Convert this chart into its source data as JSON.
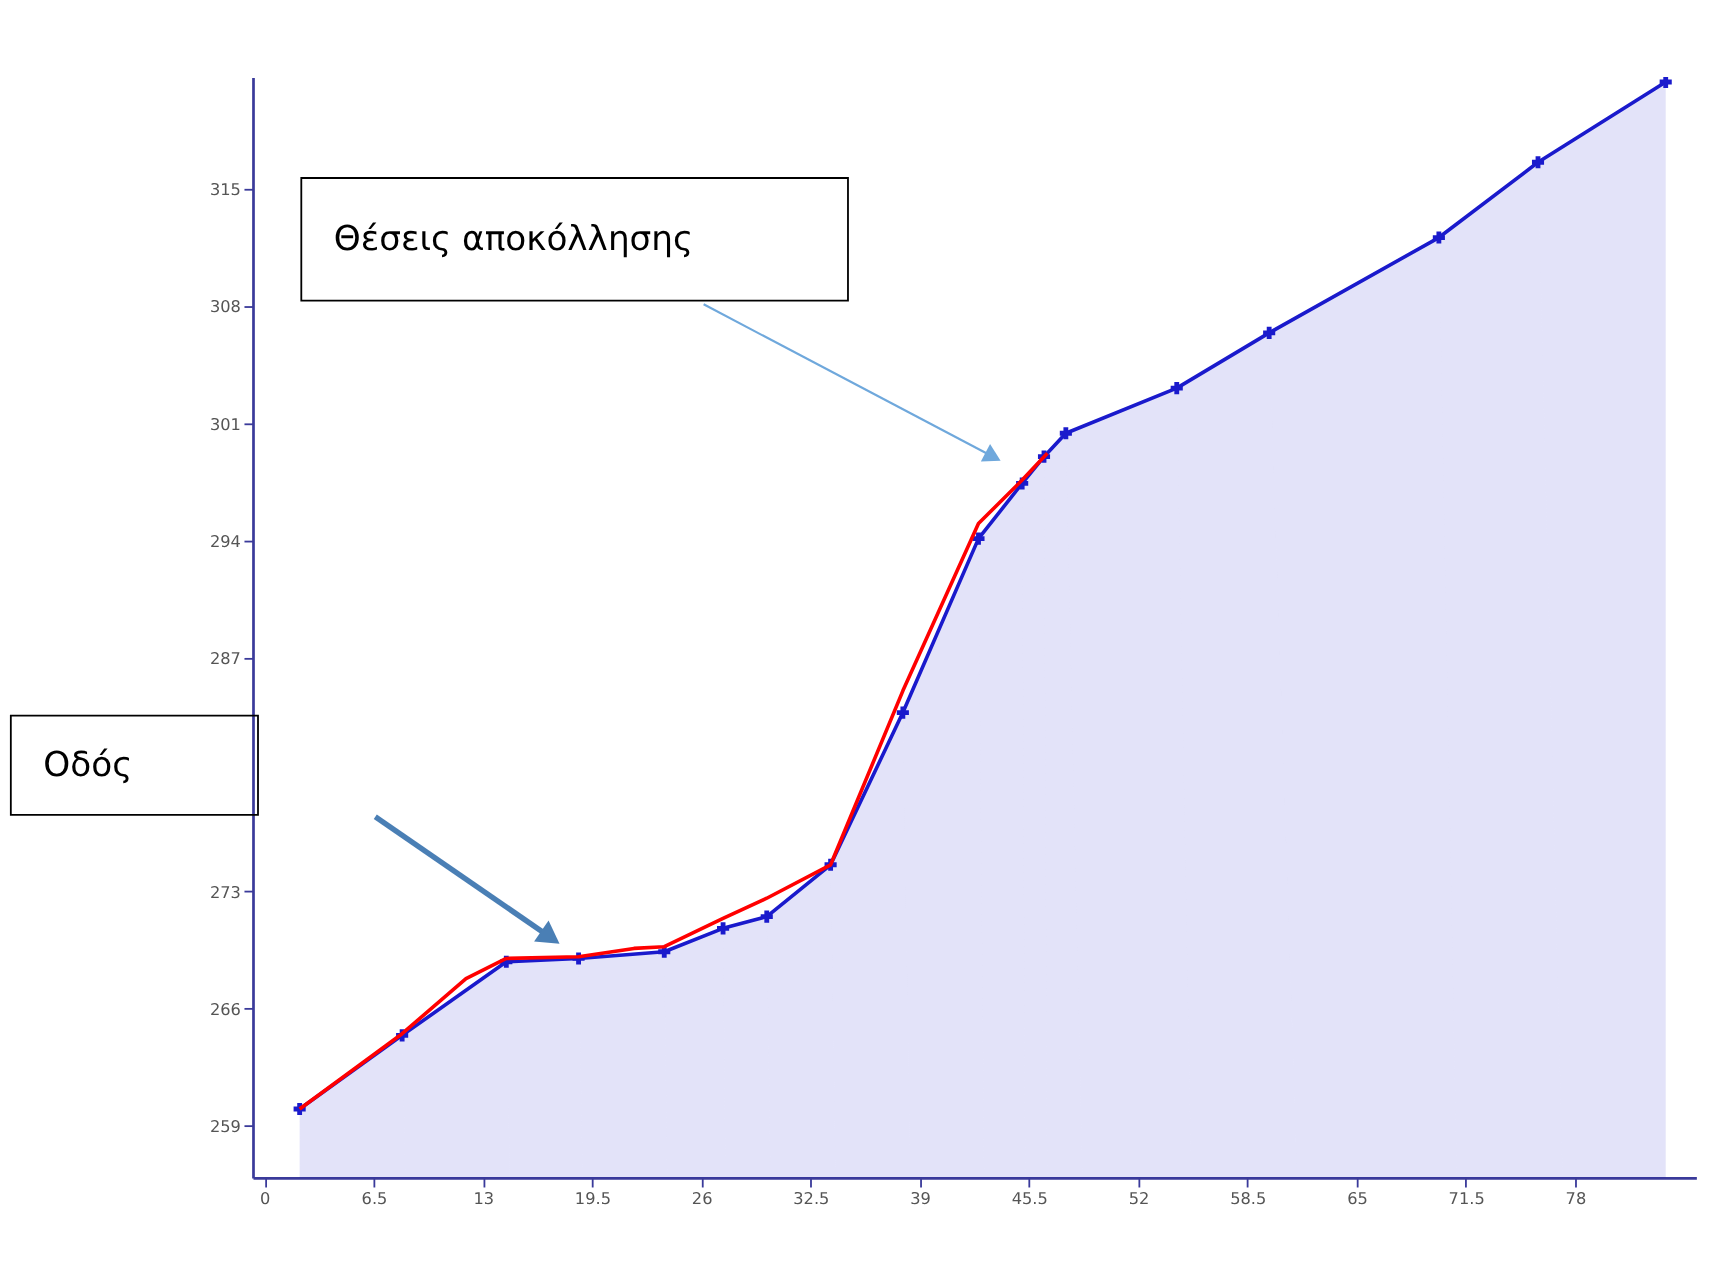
{
  "chart_data": {
    "type": "line",
    "x": [
      2.1,
      8.2,
      14.4,
      18.7,
      23.8,
      27.3,
      29.9,
      33.7,
      38.0,
      42.5,
      45.1,
      46.4,
      47.7,
      54.3,
      59.8,
      69.9,
      75.8,
      83.4
    ],
    "series": [
      {
        "type": "area",
        "color": "#1a1acc",
        "marker": "cross",
        "values": [
          260.0,
          264.4,
          268.8,
          269.0,
          269.4,
          270.8,
          271.5,
          274.6,
          283.7,
          294.1,
          297.4,
          299.0,
          300.4,
          303.1,
          306.4,
          312.1,
          316.6,
          321.4
        ]
      },
      {
        "color": "#ff0000",
        "x": [
          2.1,
          8.2,
          12.0,
          14.4,
          18.7,
          22.0,
          23.8,
          27.3,
          29.9,
          33.7,
          38.0,
          42.5,
          45.1,
          46.6
        ],
        "values": [
          260.0,
          264.5,
          267.8,
          269.0,
          269.1,
          269.6,
          269.7,
          271.4,
          272.6,
          274.6,
          285.0,
          295.0,
          297.6,
          299.2
        ]
      }
    ],
    "annotations": [
      "Θέσεις αποκόλλησης",
      "Οδός"
    ],
    "xlim": [
      -0.7,
      85.2
    ],
    "ylim": [
      255.9,
      321.7
    ],
    "xticks": [
      0,
      6.5,
      13,
      19.5,
      26,
      32.5,
      39,
      45.5,
      52,
      58.5,
      65,
      71.5,
      78
    ],
    "yticks": [
      259,
      266,
      273,
      287,
      294,
      301,
      308,
      315
    ],
    "grid": false,
    "line_style": "solid"
  }
}
